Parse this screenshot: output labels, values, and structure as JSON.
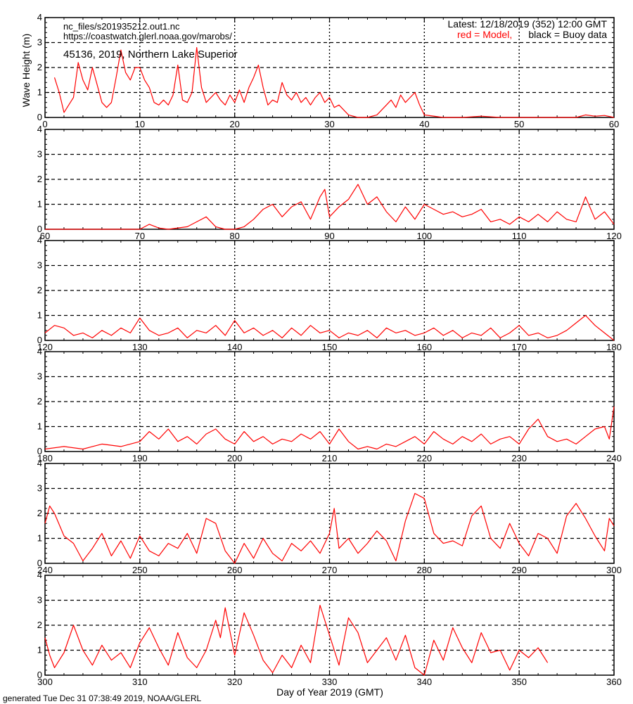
{
  "header": {
    "file": "nc_files/s201935212.out1.nc",
    "url": "https://coastwatch.glerl.noaa.gov/marobs/",
    "station": "45136, 2019, Northern Lake Superior",
    "latest": "Latest: 12/18/2019 (352) 12:00 GMT",
    "legend_model": "red = Model,",
    "legend_buoy": "black = Buoy data"
  },
  "footer": "generated Tue Dec 31 07:38:49 2019, NOAA/GLERL",
  "colors": {
    "model": "#ff0000",
    "buoy": "#000000"
  },
  "chart_data": {
    "type": "line",
    "ylabel": "Wave Height (m)",
    "xlabel": "Day of Year 2019 (GMT)",
    "ylim": [
      0,
      4
    ],
    "yticks": [
      0,
      1,
      2,
      3,
      4
    ],
    "grid": "dashed at y=1,2,3 and dotted at every 10 days",
    "legend": "top-right",
    "panels": [
      {
        "xlim": [
          0,
          60
        ],
        "xticks": [
          0,
          10,
          20,
          30,
          40,
          50,
          60
        ],
        "series": [
          {
            "name": "Model",
            "x": [
              1,
              1.5,
              2,
              2.5,
              3,
              3.5,
              4,
              4.5,
              5,
              5.5,
              6,
              6.5,
              7,
              7.5,
              8,
              8.5,
              9,
              9.5,
              10,
              10.5,
              11,
              11.5,
              12,
              12.5,
              13,
              13.5,
              14,
              14.5,
              15,
              15.5,
              16,
              16.5,
              17,
              17.5,
              18,
              18.5,
              19,
              19.5,
              20,
              20.5,
              21,
              21.5,
              22,
              22.5,
              23,
              23.5,
              24,
              24.5,
              25,
              25.5,
              26,
              26.5,
              27,
              27.5,
              28,
              28.5,
              29,
              29.5,
              30,
              30.5,
              31,
              31.5,
              32,
              33,
              34,
              35,
              35.5,
              36,
              36.5,
              37,
              37.5,
              38,
              38.5,
              39,
              39.5,
              40,
              42,
              44,
              46,
              48,
              50,
              52,
              54,
              56,
              57,
              58,
              59,
              60
            ],
            "values": [
              1.6,
              1.0,
              0.2,
              0.5,
              0.8,
              2.2,
              1.5,
              1.1,
              2.0,
              1.3,
              0.6,
              0.4,
              0.6,
              1.6,
              2.7,
              1.8,
              1.5,
              2.0,
              2.0,
              1.5,
              1.2,
              0.6,
              0.5,
              0.7,
              0.5,
              0.9,
              2.1,
              0.7,
              0.6,
              1.0,
              2.8,
              1.2,
              0.6,
              0.8,
              1.0,
              0.7,
              0.5,
              0.9,
              0.6,
              1.1,
              0.6,
              1.2,
              1.6,
              2.1,
              1.2,
              0.5,
              0.7,
              0.6,
              1.4,
              0.9,
              0.7,
              1.0,
              0.6,
              0.8,
              0.5,
              0.8,
              1.0,
              0.6,
              0.8,
              0.4,
              0.5,
              0.3,
              0.1,
              0.0,
              0.0,
              0.1,
              0.3,
              0.5,
              0.7,
              0.4,
              0.9,
              0.6,
              0.8,
              1.0,
              0.5,
              0.1,
              0.0,
              0.0,
              0.05,
              0.0,
              0.0,
              0.0,
              0.0,
              0.0,
              0.1,
              0.05,
              0.08,
              0.0
            ]
          }
        ]
      },
      {
        "xlim": [
          60,
          120
        ],
        "xticks": [
          60,
          70,
          80,
          90,
          100,
          110,
          120
        ],
        "series": [
          {
            "name": "Model",
            "x": [
              60,
              65,
              70,
              71,
              72,
              73,
              75,
              76,
              77,
              78,
              79,
              80,
              81,
              82,
              83,
              84,
              85,
              86,
              87,
              88,
              89,
              89.5,
              90,
              91,
              92,
              93,
              94,
              95,
              96,
              97,
              98,
              99,
              100,
              101,
              102,
              103,
              104,
              105,
              106,
              107,
              108,
              109,
              110,
              111,
              112,
              113,
              114,
              115,
              116,
              117,
              118,
              119,
              120
            ],
            "values": [
              0.0,
              0.0,
              0.0,
              0.2,
              0.05,
              0.0,
              0.1,
              0.3,
              0.5,
              0.1,
              0.0,
              0.0,
              0.1,
              0.4,
              0.8,
              1.0,
              0.5,
              0.9,
              1.1,
              0.4,
              1.3,
              1.6,
              0.5,
              0.9,
              1.2,
              1.8,
              1.0,
              1.3,
              0.7,
              0.3,
              0.9,
              0.4,
              1.0,
              0.8,
              0.6,
              0.7,
              0.5,
              0.6,
              0.8,
              0.3,
              0.4,
              0.2,
              0.5,
              0.3,
              0.6,
              0.3,
              0.7,
              0.4,
              0.3,
              1.3,
              0.4,
              0.7,
              0.2
            ]
          }
        ]
      },
      {
        "xlim": [
          120,
          180
        ],
        "xticks": [
          120,
          130,
          140,
          150,
          160,
          170,
          180
        ],
        "series": [
          {
            "name": "Model",
            "x": [
              120,
              121,
              122,
              123,
              124,
              125,
              126,
              127,
              128,
              129,
              130,
              131,
              132,
              133,
              134,
              135,
              136,
              137,
              138,
              139,
              140,
              141,
              142,
              143,
              144,
              145,
              146,
              147,
              148,
              149,
              150,
              151,
              152,
              153,
              154,
              155,
              156,
              157,
              158,
              159,
              160,
              161,
              162,
              163,
              164,
              165,
              166,
              167,
              168,
              169,
              170,
              171,
              172,
              173,
              174,
              175,
              176,
              177,
              178,
              179,
              180
            ],
            "values": [
              0.3,
              0.6,
              0.5,
              0.2,
              0.3,
              0.1,
              0.4,
              0.2,
              0.5,
              0.3,
              0.9,
              0.4,
              0.2,
              0.3,
              0.5,
              0.1,
              0.4,
              0.3,
              0.6,
              0.2,
              0.8,
              0.3,
              0.5,
              0.2,
              0.4,
              0.1,
              0.5,
              0.2,
              0.6,
              0.3,
              0.4,
              0.1,
              0.3,
              0.2,
              0.4,
              0.1,
              0.5,
              0.3,
              0.4,
              0.2,
              0.3,
              0.5,
              0.2,
              0.4,
              0.1,
              0.3,
              0.2,
              0.5,
              0.1,
              0.3,
              0.6,
              0.2,
              0.3,
              0.1,
              0.2,
              0.4,
              0.7,
              1.0,
              0.6,
              0.3,
              0.0
            ]
          }
        ]
      },
      {
        "xlim": [
          180,
          240
        ],
        "xticks": [
          180,
          190,
          200,
          210,
          220,
          230,
          240
        ],
        "series": [
          {
            "name": "Model",
            "x": [
              180,
              182,
              184,
              186,
              188,
              190,
              191,
              192,
              193,
              194,
              195,
              196,
              197,
              198,
              199,
              200,
              201,
              202,
              203,
              204,
              205,
              206,
              207,
              208,
              209,
              210,
              211,
              212,
              213,
              214,
              215,
              216,
              217,
              218,
              219,
              220,
              221,
              222,
              223,
              224,
              225,
              226,
              227,
              228,
              229,
              230,
              231,
              232,
              233,
              234,
              235,
              236,
              237,
              238,
              239,
              239.5,
              240
            ],
            "values": [
              0.1,
              0.2,
              0.1,
              0.3,
              0.2,
              0.4,
              0.8,
              0.5,
              0.9,
              0.4,
              0.6,
              0.3,
              0.7,
              0.9,
              0.5,
              0.3,
              0.8,
              0.4,
              0.6,
              0.3,
              0.5,
              0.4,
              0.7,
              0.5,
              0.8,
              0.3,
              0.9,
              0.4,
              0.1,
              0.2,
              0.1,
              0.3,
              0.2,
              0.4,
              0.6,
              0.3,
              0.8,
              0.5,
              0.3,
              0.6,
              0.4,
              0.7,
              0.3,
              0.5,
              0.6,
              0.3,
              0.9,
              1.3,
              0.6,
              0.4,
              0.5,
              0.3,
              0.6,
              0.9,
              1.0,
              0.5,
              1.8
            ]
          }
        ]
      },
      {
        "xlim": [
          240,
          300
        ],
        "xticks": [
          240,
          250,
          260,
          270,
          280,
          290,
          300
        ],
        "series": [
          {
            "name": "Model",
            "x": [
              240,
              240.5,
              241,
              242,
              243,
              244,
              245,
              246,
              247,
              248,
              249,
              250,
              251,
              252,
              253,
              254,
              255,
              256,
              257,
              258,
              259,
              260,
              261,
              262,
              263,
              264,
              265,
              266,
              267,
              268,
              269,
              270,
              270.5,
              271,
              272,
              273,
              274,
              275,
              276,
              277,
              278,
              279,
              280,
              281,
              282,
              283,
              284,
              285,
              286,
              287,
              288,
              289,
              290,
              291,
              292,
              293,
              294,
              295,
              296,
              297,
              298,
              299,
              299.5,
              300
            ],
            "values": [
              1.6,
              2.3,
              2.0,
              1.1,
              0.8,
              0.1,
              0.6,
              1.2,
              0.3,
              0.9,
              0.2,
              1.1,
              0.5,
              0.3,
              0.8,
              0.6,
              1.2,
              0.4,
              1.8,
              1.6,
              0.5,
              0.0,
              0.8,
              0.2,
              1.0,
              0.4,
              0.1,
              0.8,
              0.5,
              0.9,
              0.4,
              1.2,
              2.2,
              0.6,
              1.0,
              0.4,
              0.8,
              1.3,
              0.9,
              0.1,
              1.7,
              2.8,
              2.6,
              1.2,
              0.8,
              0.9,
              0.7,
              1.9,
              2.3,
              1.0,
              0.6,
              1.6,
              0.8,
              0.3,
              1.2,
              1.0,
              0.4,
              1.9,
              2.4,
              1.8,
              1.1,
              0.5,
              1.8,
              1.5
            ]
          }
        ]
      },
      {
        "xlim": [
          300,
          360
        ],
        "xticks": [
          300,
          310,
          320,
          330,
          340,
          350,
          360
        ],
        "series": [
          {
            "name": "Model",
            "x": [
              300,
              300.5,
              301,
              302,
              303,
              304,
              305,
              306,
              307,
              308,
              309,
              310,
              311,
              312,
              313,
              314,
              315,
              316,
              317,
              318,
              318.5,
              319,
              320,
              321,
              322,
              323,
              324,
              325,
              326,
              327,
              328,
              329,
              330,
              331,
              332,
              333,
              334,
              335,
              336,
              337,
              338,
              339,
              340,
              341,
              342,
              343,
              344,
              345,
              346,
              347,
              348,
              349,
              350,
              351,
              352,
              353
            ],
            "values": [
              1.5,
              0.8,
              0.3,
              0.9,
              2.0,
              1.0,
              0.4,
              1.2,
              0.6,
              0.9,
              0.3,
              1.3,
              1.9,
              1.1,
              0.4,
              1.7,
              0.7,
              0.3,
              1.0,
              2.2,
              1.5,
              2.7,
              0.8,
              2.5,
              1.6,
              0.6,
              0.1,
              0.8,
              0.3,
              1.2,
              0.5,
              2.8,
              1.6,
              0.4,
              2.3,
              1.7,
              0.5,
              1.0,
              1.5,
              0.6,
              1.6,
              0.3,
              0.0,
              1.4,
              0.6,
              1.9,
              1.1,
              0.5,
              1.7,
              0.9,
              1.0,
              0.2,
              1.0,
              0.7,
              1.1,
              0.5
            ]
          }
        ]
      }
    ]
  }
}
